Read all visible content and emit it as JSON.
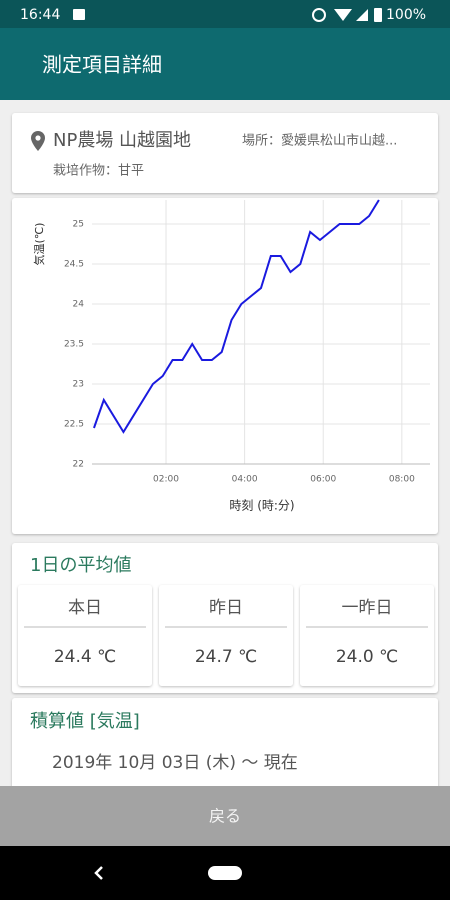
{
  "status_bar": {
    "time": "16:44",
    "battery": "100%"
  },
  "app_bar": {
    "title": "測定項目詳細"
  },
  "farm_card": {
    "name": "NP農場 山越園地",
    "location": "場所：愛媛県松山市山越...",
    "crop": "栽培作物：甘平"
  },
  "chart_data": {
    "type": "line",
    "x_label": "時刻 (時:分)",
    "y_label": "気温(℃)",
    "x": [
      10,
      25,
      55,
      100,
      115,
      130,
      145,
      160,
      175,
      190,
      205,
      220,
      235,
      250,
      265,
      280,
      295,
      310,
      325,
      340,
      355,
      370,
      385,
      415,
      430,
      445
    ],
    "series": [
      {
        "color": "#1a1adf",
        "values": [
          22.45,
          22.8,
          22.4,
          23.0,
          23.1,
          23.3,
          23.3,
          23.5,
          23.3,
          23.3,
          23.4,
          23.8,
          24.0,
          24.1,
          24.2,
          24.6,
          24.6,
          24.4,
          24.5,
          24.9,
          24.8,
          24.9,
          25.0,
          25.0,
          25.1,
          25.3
        ]
      }
    ],
    "xlim": [
      7,
      523
    ],
    "xticks": [
      {
        "value": 120,
        "label": "02:00"
      },
      {
        "value": 240,
        "label": "04:00"
      },
      {
        "value": 360,
        "label": "06:00"
      },
      {
        "value": 480,
        "label": "08:00"
      }
    ],
    "ylim": [
      22,
      25.3
    ],
    "yticks": [
      22,
      22.5,
      23,
      23.5,
      24,
      24.5,
      25
    ],
    "grid": true
  },
  "average_card": {
    "title": "1日の平均値",
    "items": [
      {
        "label": "本日",
        "value": "24.4 ℃"
      },
      {
        "label": "昨日",
        "value": "24.7 ℃"
      },
      {
        "label": "一昨日",
        "value": "24.0 ℃"
      }
    ]
  },
  "cumulative_card": {
    "title": "積算値 [気温]",
    "period": "2019年 10月 03日 (木) 〜 現在"
  },
  "footer": {
    "button": "戻る"
  }
}
